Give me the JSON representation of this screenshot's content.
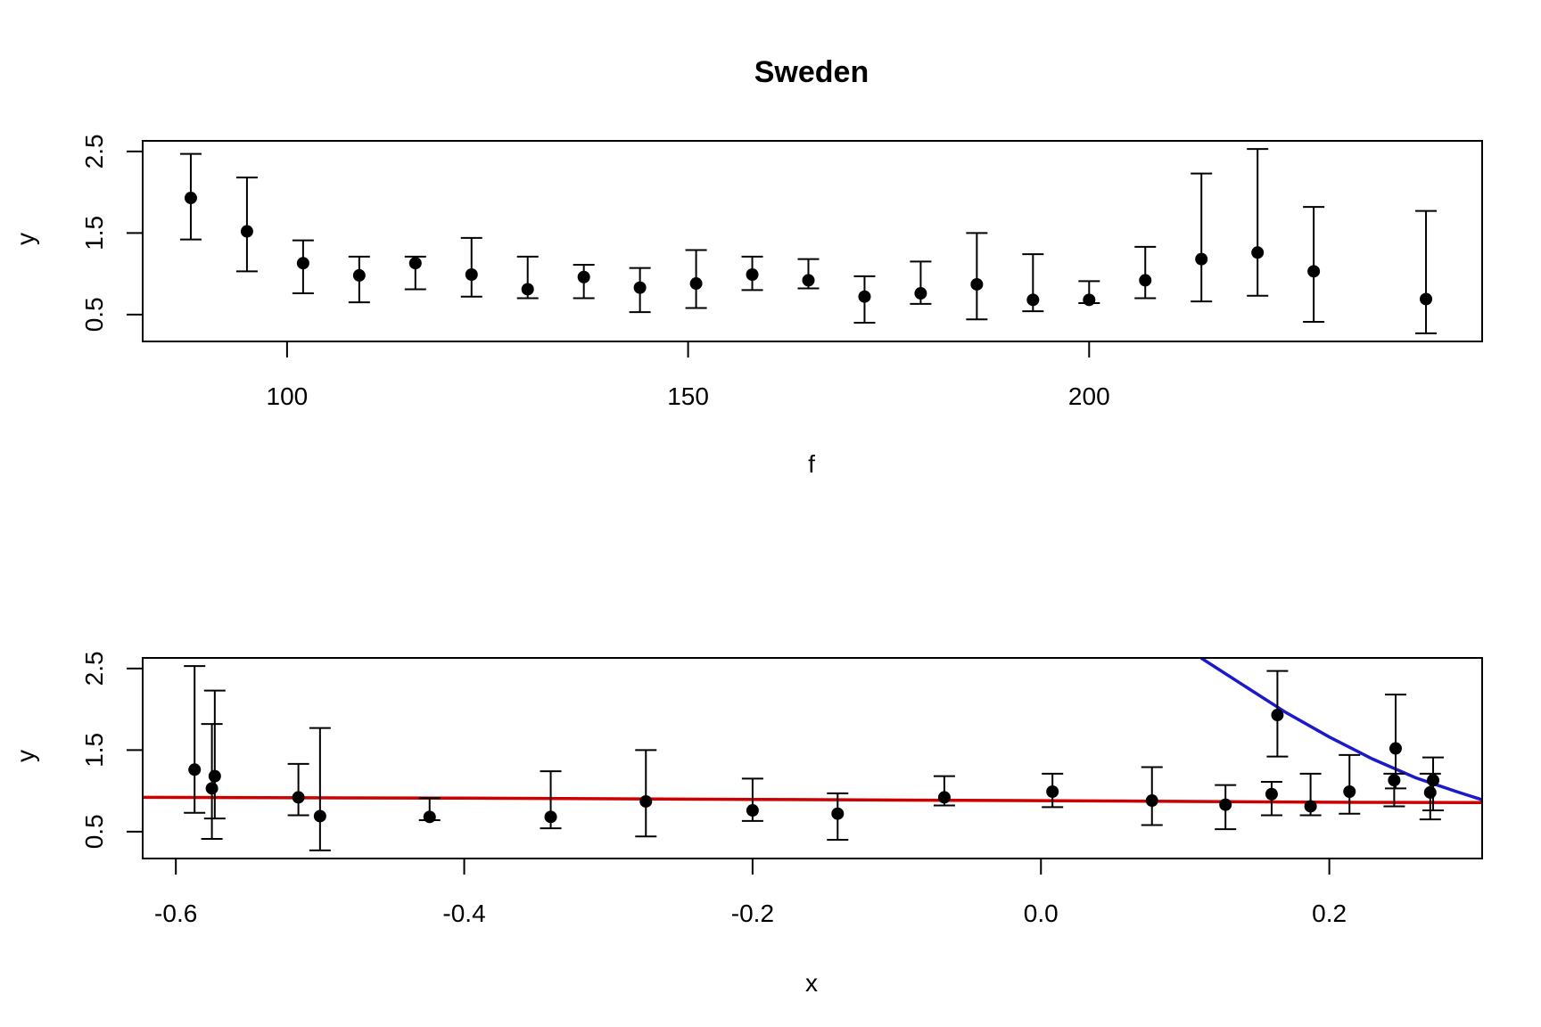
{
  "chart_data": [
    {
      "type": "scatter",
      "title": "Sweden",
      "xlabel": "f",
      "ylabel": "y",
      "xlim": [
        82,
        249
      ],
      "ylim": [
        0.17,
        2.63
      ],
      "x_ticks": [
        100,
        150,
        200
      ],
      "x_tick_labels": [
        "100",
        "150",
        "200"
      ],
      "y_ticks": [
        0.5,
        1.5,
        2.5
      ],
      "y_tick_labels": [
        "0.5",
        "1.5",
        "2.5"
      ],
      "grid": false,
      "series": [
        {
          "style": "points-with-error-bars",
          "color": "#000000",
          "points": [
            {
              "x": 88,
              "y": 1.93,
              "lo": 1.42,
              "hi": 2.47
            },
            {
              "x": 95,
              "y": 1.52,
              "lo": 1.03,
              "hi": 2.18
            },
            {
              "x": 102,
              "y": 1.13,
              "lo": 0.76,
              "hi": 1.41
            },
            {
              "x": 109,
              "y": 0.98,
              "lo": 0.65,
              "hi": 1.21
            },
            {
              "x": 116,
              "y": 1.13,
              "lo": 0.81,
              "hi": 1.21
            },
            {
              "x": 123,
              "y": 0.99,
              "lo": 0.72,
              "hi": 1.44
            },
            {
              "x": 130,
              "y": 0.81,
              "lo": 0.7,
              "hi": 1.21
            },
            {
              "x": 137,
              "y": 0.96,
              "lo": 0.7,
              "hi": 1.11
            },
            {
              "x": 144,
              "y": 0.83,
              "lo": 0.53,
              "hi": 1.07
            },
            {
              "x": 151,
              "y": 0.88,
              "lo": 0.58,
              "hi": 1.29
            },
            {
              "x": 158,
              "y": 0.99,
              "lo": 0.8,
              "hi": 1.21
            },
            {
              "x": 165,
              "y": 0.92,
              "lo": 0.82,
              "hi": 1.18
            },
            {
              "x": 172,
              "y": 0.72,
              "lo": 0.4,
              "hi": 0.97
            },
            {
              "x": 179,
              "y": 0.76,
              "lo": 0.63,
              "hi": 1.15
            },
            {
              "x": 186,
              "y": 0.87,
              "lo": 0.44,
              "hi": 1.5
            },
            {
              "x": 193,
              "y": 0.68,
              "lo": 0.54,
              "hi": 1.24
            },
            {
              "x": 200,
              "y": 0.68,
              "lo": 0.64,
              "hi": 0.91
            },
            {
              "x": 207,
              "y": 0.92,
              "lo": 0.7,
              "hi": 1.33
            },
            {
              "x": 214,
              "y": 1.18,
              "lo": 0.66,
              "hi": 2.23
            },
            {
              "x": 221,
              "y": 1.26,
              "lo": 0.73,
              "hi": 2.53
            },
            {
              "x": 228,
              "y": 1.03,
              "lo": 0.41,
              "hi": 1.82
            },
            {
              "x": 242,
              "y": 0.69,
              "lo": 0.27,
              "hi": 1.77
            }
          ]
        }
      ]
    },
    {
      "type": "scatter",
      "title": "",
      "xlabel": "x",
      "ylabel": "y",
      "xlim": [
        -0.623,
        0.306
      ],
      "ylim": [
        0.17,
        2.63
      ],
      "x_ticks": [
        -0.6,
        -0.4,
        -0.2,
        0.0,
        0.2
      ],
      "x_tick_labels": [
        "-0.6",
        "-0.4",
        "-0.2",
        "0.0",
        "0.2"
      ],
      "y_ticks": [
        0.5,
        1.5,
        2.5
      ],
      "y_tick_labels": [
        "0.5",
        "1.5",
        "2.5"
      ],
      "grid": false,
      "series": [
        {
          "style": "points-with-error-bars",
          "color": "#000000",
          "points": [
            {
              "x": -0.587,
              "y": 1.26,
              "lo": 0.73,
              "hi": 2.53
            },
            {
              "x": -0.575,
              "y": 1.03,
              "lo": 0.41,
              "hi": 1.82
            },
            {
              "x": -0.573,
              "y": 1.18,
              "lo": 0.66,
              "hi": 2.23
            },
            {
              "x": -0.515,
              "y": 0.92,
              "lo": 0.7,
              "hi": 1.33
            },
            {
              "x": -0.5,
              "y": 0.69,
              "lo": 0.27,
              "hi": 1.77
            },
            {
              "x": -0.424,
              "y": 0.68,
              "lo": 0.64,
              "hi": 0.91
            },
            {
              "x": -0.34,
              "y": 0.68,
              "lo": 0.54,
              "hi": 1.24
            },
            {
              "x": -0.274,
              "y": 0.87,
              "lo": 0.44,
              "hi": 1.5
            },
            {
              "x": -0.2,
              "y": 0.76,
              "lo": 0.63,
              "hi": 1.15
            },
            {
              "x": -0.141,
              "y": 0.72,
              "lo": 0.4,
              "hi": 0.97
            },
            {
              "x": -0.067,
              "y": 0.92,
              "lo": 0.82,
              "hi": 1.18
            },
            {
              "x": 0.008,
              "y": 0.99,
              "lo": 0.8,
              "hi": 1.21
            },
            {
              "x": 0.077,
              "y": 0.88,
              "lo": 0.58,
              "hi": 1.29
            },
            {
              "x": 0.128,
              "y": 0.83,
              "lo": 0.53,
              "hi": 1.07
            },
            {
              "x": 0.16,
              "y": 0.96,
              "lo": 0.7,
              "hi": 1.11
            },
            {
              "x": 0.164,
              "y": 1.93,
              "lo": 1.42,
              "hi": 2.47
            },
            {
              "x": 0.187,
              "y": 0.81,
              "lo": 0.7,
              "hi": 1.21
            },
            {
              "x": 0.214,
              "y": 0.99,
              "lo": 0.72,
              "hi": 1.44
            },
            {
              "x": 0.245,
              "y": 1.13,
              "lo": 0.81,
              "hi": 1.21
            },
            {
              "x": 0.246,
              "y": 1.52,
              "lo": 1.03,
              "hi": 2.18
            },
            {
              "x": 0.27,
              "y": 0.98,
              "lo": 0.65,
              "hi": 1.21
            },
            {
              "x": 0.272,
              "y": 1.13,
              "lo": 0.76,
              "hi": 1.41
            }
          ]
        },
        {
          "style": "line",
          "color": "#cc0000",
          "x": [
            -0.623,
            -0.4,
            -0.2,
            0.0,
            0.2,
            0.306
          ],
          "y": [
            0.92,
            0.91,
            0.895,
            0.88,
            0.86,
            0.855
          ]
        },
        {
          "style": "line",
          "color": "#1a1acc",
          "x": [
            0.111,
            0.14,
            0.17,
            0.2,
            0.23,
            0.26,
            0.29,
            0.306
          ],
          "y": [
            2.63,
            2.3,
            1.96,
            1.66,
            1.39,
            1.16,
            0.98,
            0.89
          ]
        }
      ]
    }
  ]
}
